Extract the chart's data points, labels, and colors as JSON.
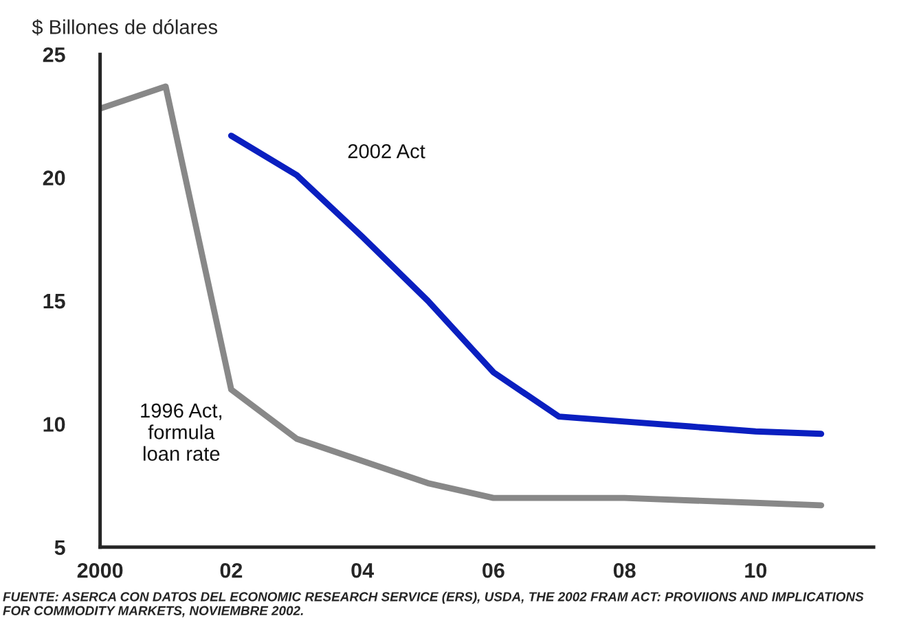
{
  "chart_data": {
    "type": "line",
    "ylabel": "$ Billones de dólares",
    "x": [
      2000,
      2001,
      2002,
      2003,
      2004,
      2005,
      2006,
      2007,
      2008,
      2009,
      2010,
      2011
    ],
    "series": [
      {
        "name": "2002 Act",
        "color": "#0a1fc0",
        "values": [
          null,
          null,
          21.7,
          20.1,
          17.6,
          15.0,
          12.1,
          10.3,
          10.1,
          9.9,
          9.7,
          9.6
        ]
      },
      {
        "name": "1996 Act,\nformula\nloan rate",
        "color": "#888888",
        "values": [
          22.8,
          23.7,
          11.4,
          9.4,
          8.5,
          7.6,
          7.0,
          7.0,
          7.0,
          6.9,
          6.8,
          6.7
        ]
      }
    ],
    "xlim": [
      2000,
      2011.8
    ],
    "xticks": [
      {
        "value": 2000,
        "label": "2000"
      },
      {
        "value": 2002,
        "label": "02"
      },
      {
        "value": 2004,
        "label": "04"
      },
      {
        "value": 2006,
        "label": "06"
      },
      {
        "value": 2008,
        "label": "08"
      },
      {
        "value": 2010,
        "label": "10"
      }
    ],
    "ylim": [
      5,
      25
    ],
    "yticks": [
      5,
      10,
      15,
      20,
      25
    ],
    "grid": false,
    "legend": false,
    "marker": "none",
    "line_style": "solid",
    "annotations": [
      "FUENTE: ASERCA CON DATOS DEL ECONOMIC RESEARCH SERVICE (ERS), USDA, THE 2002 FRAM ACT: PROVIIONS AND IMPLICATIONS\nFOR COMMODITY MARKETS, NOVIEMBRE 2002."
    ]
  }
}
